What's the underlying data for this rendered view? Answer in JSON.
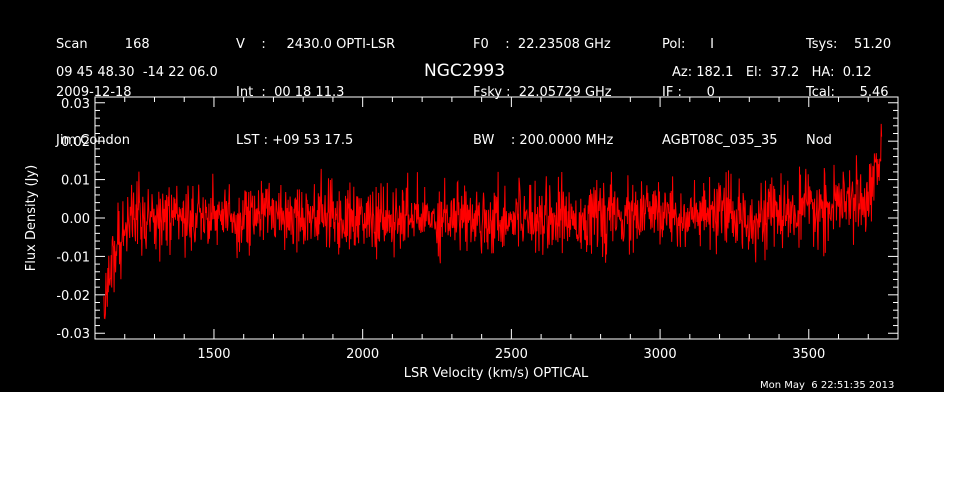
{
  "header": {
    "col1": [
      "Scan         168",
      "2009-12-18",
      "Jim Condon"
    ],
    "col2": [
      "V    :     2430.0 OPTI-LSR",
      "Int  :  00 18 11.3",
      "LST : +09 53 17.5"
    ],
    "col3": [
      "F0    :  22.23508 GHz",
      "Fsky :  22.05729 GHz",
      "BW    : 200.0000 MHz"
    ],
    "col4": [
      "Pol:      I",
      "IF :      0",
      "AGBT08C_035_35"
    ],
    "col5": [
      "Tsys:    51.20",
      "Tcal:      5.46",
      "Nod"
    ],
    "coords": "09 45 48.30  -14 22 06.0",
    "source": "NGC2993",
    "pointing": "Az: 182.1   El:  37.2   HA:  0.12"
  },
  "timestamp": "Mon May  6 22:51:35 2013",
  "colors": {
    "background": "#000000",
    "trace": "#ff0000",
    "axes": "#ffffff"
  },
  "chart_data": {
    "type": "line",
    "xlabel": "LSR Velocity (km/s) OPTICAL",
    "ylabel": "Flux Density (Jy)",
    "xlim": [
      1100,
      3800
    ],
    "ylim": [
      -0.0315,
      0.0315
    ],
    "xticks": [
      1500,
      2000,
      2500,
      3000,
      3500
    ],
    "xtick_labels": [
      "1500",
      "2000",
      "2500",
      "3000",
      "3500"
    ],
    "yticks": [
      0.03,
      0.02,
      0.01,
      0.0,
      -0.01,
      -0.02,
      -0.03
    ],
    "ytick_labels": [
      "0.03",
      "0.02",
      "0.01",
      "0.00",
      "-0.01",
      "-0.02",
      "-0.03"
    ],
    "grid": false,
    "series": [
      {
        "color": "#ff0000",
        "x": [
          1130,
          1140,
          1150,
          1165,
          1180,
          1200,
          1230,
          1260,
          1300,
          1350,
          1400,
          1450,
          1500,
          1550,
          1600,
          1650,
          1700,
          1750,
          1800,
          1850,
          1900,
          1950,
          2000,
          2050,
          2100,
          2150,
          2200,
          2250,
          2300,
          2350,
          2400,
          2450,
          2500,
          2550,
          2600,
          2650,
          2700,
          2750,
          2800,
          2850,
          2900,
          2950,
          3000,
          3050,
          3100,
          3150,
          3200,
          3250,
          3300,
          3350,
          3400,
          3450,
          3500,
          3550,
          3600,
          3650,
          3680,
          3700,
          3720,
          3735,
          3745
        ],
        "y": [
          -0.025,
          -0.019,
          -0.014,
          -0.009,
          -0.005,
          -0.002,
          0.0,
          0.001,
          0.001,
          0.0,
          0.0,
          0.001,
          0.001,
          0.0,
          0.0,
          0.001,
          0.002,
          0.001,
          0.001,
          0.001,
          0.0,
          0.0,
          0.0,
          -0.001,
          -0.001,
          0.0,
          0.0,
          0.0,
          0.001,
          0.0,
          0.0,
          0.0,
          0.0,
          0.001,
          0.001,
          0.0,
          0.0,
          0.0,
          0.0,
          0.0,
          0.0,
          0.001,
          0.001,
          0.001,
          0.0,
          0.0,
          0.001,
          0.0,
          0.0,
          0.001,
          0.001,
          0.001,
          0.002,
          0.002,
          0.003,
          0.004,
          0.005,
          0.007,
          0.01,
          0.015,
          0.02
        ],
        "noise_rms": 0.0055,
        "noise_peak": 0.012
      }
    ]
  }
}
